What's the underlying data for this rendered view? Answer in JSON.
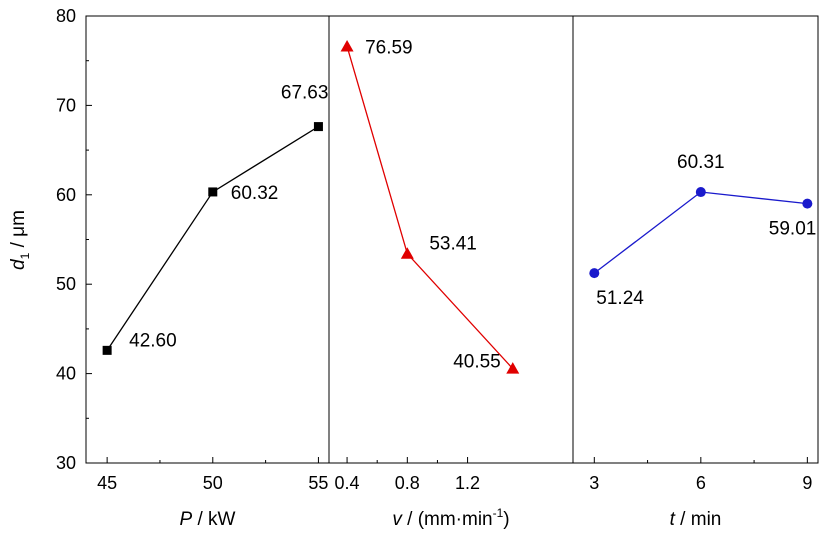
{
  "chart_data": {
    "type": "line",
    "ylabel": "d",
    "ylabel_sub": "1",
    "ylabel_unit": " / μm",
    "ylim": [
      30,
      80
    ],
    "yticks": [
      30,
      40,
      50,
      60,
      70,
      80
    ],
    "panels": [
      {
        "xlabel": "P",
        "xlabel_unit": " / kW",
        "xlim": [
          44,
          55.5
        ],
        "xticks": [
          45,
          50,
          55
        ],
        "color": "#000000",
        "marker": "square",
        "points": [
          {
            "x": 45,
            "y": 42.6,
            "label": "42.60",
            "label_pos": "right-up"
          },
          {
            "x": 50,
            "y": 60.32,
            "label": "60.32",
            "label_pos": "right"
          },
          {
            "x": 55,
            "y": 67.63,
            "label": "67.63",
            "label_pos": "above-left"
          }
        ]
      },
      {
        "xlabel": "v",
        "xlabel_unit": " / (mm·min",
        "xlabel_sup": "-1",
        "xlabel_unit_end": ")",
        "xlim": [
          0.28,
          1.9
        ],
        "xticks": [
          0.4,
          0.8,
          1.2
        ],
        "color": "#e00000",
        "marker": "triangle",
        "points": [
          {
            "x": 0.4,
            "y": 76.59,
            "label": "76.59",
            "label_pos": "right"
          },
          {
            "x": 0.8,
            "y": 53.41,
            "label": "53.41",
            "label_pos": "right-up"
          },
          {
            "x": 1.5,
            "y": 40.55,
            "label": "40.55",
            "label_pos": "left"
          }
        ]
      },
      {
        "xlabel": "t",
        "xlabel_unit": " / min",
        "xlim": [
          2.4,
          9.3
        ],
        "xticks": [
          3,
          6,
          9
        ],
        "color": "#1a1acc",
        "marker": "circle",
        "points": [
          {
            "x": 3,
            "y": 51.24,
            "label": "51.24",
            "label_pos": "below"
          },
          {
            "x": 6,
            "y": 60.31,
            "label": "60.31",
            "label_pos": "above"
          },
          {
            "x": 9,
            "y": 59.01,
            "label": "59.01",
            "label_pos": "below-left"
          }
        ]
      }
    ]
  }
}
